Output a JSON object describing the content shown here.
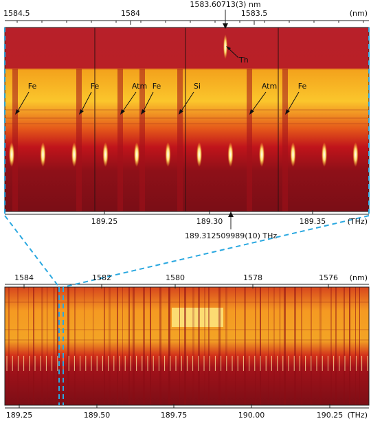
{
  "top_panel": {
    "wavelength_ticks": [
      "1584.5",
      "1584",
      "1583.5"
    ],
    "wavelength_unit": "(nm)",
    "frequency_ticks": [
      "189.25",
      "189.30",
      "189.35"
    ],
    "frequency_unit": "(THz)",
    "line_annotation": "1583.60713(3) nm",
    "frequency_annotation": "189.312509989(10) THz",
    "thorium_label": "Th",
    "line_labels": [
      "Fe",
      "Fe",
      "Atm",
      "Fe",
      "Si",
      "Atm",
      "Fe"
    ]
  },
  "bottom_panel": {
    "wavelength_ticks": [
      "1584",
      "1582",
      "1580",
      "1578",
      "1576"
    ],
    "wavelength_unit": "(nm)",
    "frequency_ticks": [
      "189.25",
      "189.50",
      "189.75",
      "190.00",
      "190.25"
    ],
    "frequency_unit": "(THz)"
  }
}
